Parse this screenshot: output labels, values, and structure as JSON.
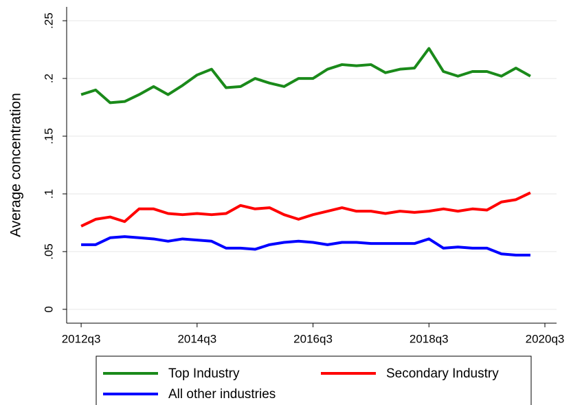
{
  "chart_data": {
    "type": "line",
    "y_label": "Average concentration",
    "x": [
      "2012q3",
      "2012q4",
      "2013q1",
      "2013q2",
      "2013q3",
      "2013q4",
      "2014q1",
      "2014q2",
      "2014q3",
      "2014q4",
      "2015q1",
      "2015q2",
      "2015q3",
      "2015q4",
      "2016q1",
      "2016q2",
      "2016q3",
      "2016q4",
      "2017q1",
      "2017q2",
      "2017q3",
      "2017q4",
      "2018q1",
      "2018q2",
      "2018q3",
      "2018q4",
      "2019q1",
      "2019q2",
      "2019q3",
      "2019q4",
      "2020q1",
      "2020q2"
    ],
    "series": [
      {
        "name": "Top Industry",
        "color": "#1a8a1a",
        "values": [
          0.186,
          0.19,
          0.179,
          0.18,
          0.186,
          0.193,
          0.186,
          0.194,
          0.203,
          0.208,
          0.192,
          0.193,
          0.2,
          0.196,
          0.193,
          0.2,
          0.2,
          0.208,
          0.212,
          0.211,
          0.212,
          0.205,
          0.208,
          0.209,
          0.226,
          0.206,
          0.202,
          0.206,
          0.206,
          0.202,
          0.209,
          0.202
        ]
      },
      {
        "name": "Secondary Industry",
        "color": "#ff0000",
        "values": [
          0.072,
          0.078,
          0.08,
          0.076,
          0.087,
          0.087,
          0.083,
          0.082,
          0.083,
          0.082,
          0.083,
          0.09,
          0.087,
          0.088,
          0.082,
          0.078,
          0.082,
          0.085,
          0.088,
          0.085,
          0.085,
          0.083,
          0.085,
          0.084,
          0.085,
          0.087,
          0.085,
          0.087,
          0.086,
          0.093,
          0.095,
          0.101
        ]
      },
      {
        "name": "All other industries",
        "color": "#0000ff",
        "values": [
          0.056,
          0.056,
          0.062,
          0.063,
          0.062,
          0.061,
          0.059,
          0.061,
          0.06,
          0.059,
          0.053,
          0.053,
          0.052,
          0.056,
          0.058,
          0.059,
          0.058,
          0.056,
          0.058,
          0.058,
          0.057,
          0.057,
          0.057,
          0.057,
          0.061,
          0.053,
          0.054,
          0.053,
          0.053,
          0.048,
          0.047,
          0.047
        ]
      }
    ],
    "xlim": [
      "2012q2",
      "2020q3"
    ],
    "xticks": [
      "2012q3",
      "2014q3",
      "2016q3",
      "2018q3",
      "2020q3"
    ],
    "ylim": [
      -0.012,
      0.262
    ],
    "yticks": [
      0,
      {
        "value": 0.05,
        "label": ".05"
      },
      {
        "value": 0.1,
        "label": ".1"
      },
      {
        "value": 0.15,
        "label": ".15"
      },
      {
        "value": 0.2,
        "label": ".2"
      },
      {
        "value": 0.25,
        "label": ".25"
      }
    ],
    "grid": true,
    "legend": "bottom"
  }
}
